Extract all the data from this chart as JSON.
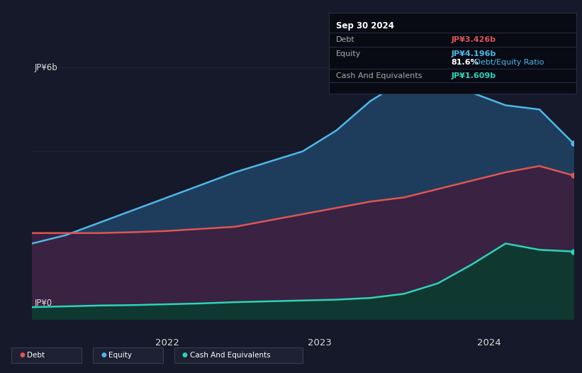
{
  "background_color": "#151929",
  "plot_bg_color": "#151929",
  "grid_color": "#252840",
  "title_date": "Sep 30 2024",
  "debt_label": "Debt",
  "equity_label": "Equity",
  "cash_label": "Cash And Equivalents",
  "debt_color": "#e05555",
  "equity_color": "#4db8e8",
  "cash_color": "#2dd4b8",
  "equity_fill_color": "#1e3d5c",
  "debt_fill_color": "#3d2040",
  "cash_fill_color": "#0f3830",
  "info_box_bg": "#080a14",
  "info_box_border": "#2a2d3e",
  "debt_value": "JP¥3.426b",
  "equity_value": "JP¥4.196b",
  "ratio_text": "81.6%",
  "ratio_label": " Debt/Equity Ratio",
  "cash_value": "JP¥1.609b",
  "ylabel_top": "JP¥6b",
  "ylabel_bottom": "JP¥0",
  "x_ticks": [
    "2022",
    "2023",
    "2024"
  ],
  "ylim": [
    0,
    6.5
  ],
  "times": [
    0,
    1,
    2,
    3,
    4,
    5,
    6,
    7,
    8,
    9,
    10,
    11,
    12,
    13,
    14,
    15,
    16
  ],
  "equity_data": [
    1.8,
    2.0,
    2.3,
    2.6,
    2.9,
    3.2,
    3.5,
    3.75,
    4.0,
    4.5,
    5.2,
    5.7,
    5.8,
    5.4,
    5.1,
    5.0,
    4.196
  ],
  "debt_data": [
    2.05,
    2.05,
    2.05,
    2.07,
    2.1,
    2.15,
    2.2,
    2.35,
    2.5,
    2.65,
    2.8,
    2.9,
    3.1,
    3.3,
    3.5,
    3.65,
    3.426
  ],
  "cash_data": [
    0.28,
    0.3,
    0.32,
    0.33,
    0.35,
    0.37,
    0.4,
    0.42,
    0.44,
    0.46,
    0.5,
    0.6,
    0.85,
    1.3,
    1.8,
    1.65,
    1.609
  ],
  "legend_box_color": "#1e2133",
  "legend_box_border": "#3a3d4e",
  "text_color_main": "#aaaaaa",
  "text_color_white": "#dddddd",
  "ratio_color": "#4db8e8"
}
